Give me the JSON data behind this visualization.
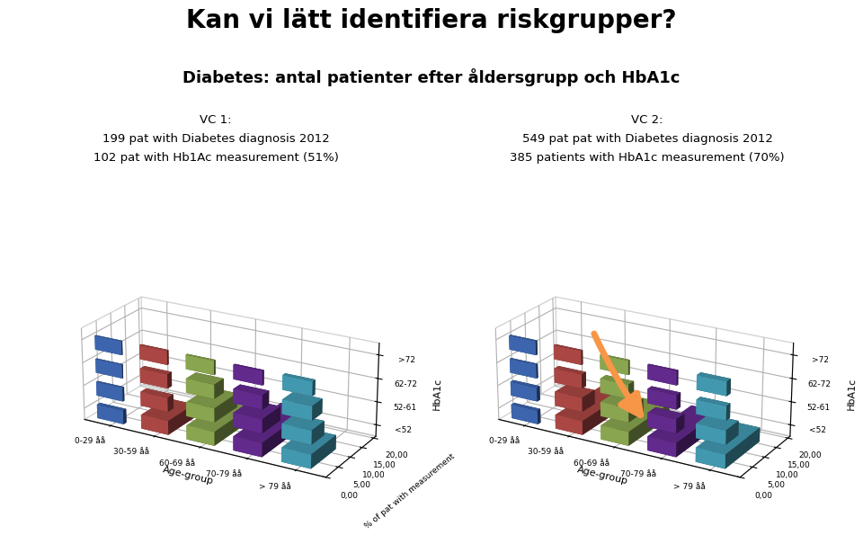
{
  "title_main": "Kan vi lätt identifiera riskgrupper?",
  "title_sub": "Diabetes: antal patienter efter åldersgrupp och HbA1c",
  "vc1_line1": "VC 1:",
  "vc1_line2": "199 pat with Diabetes diagnosis 2012",
  "vc1_line3": "102 pat with Hb1Ac measurement (51%)",
  "vc2_line1": "VC 2:",
  "vc2_line2": "549 pat pat with Diabetes diagnosis 2012",
  "vc2_line3": "385 patients with HbA1c measurement (70%)",
  "ylabel": "% of pat with measurement",
  "xlabel_age": "Age-group",
  "xlabel_hba1c": "HbA1c",
  "age_labels": [
    "0-29 åå",
    "30-59 åå",
    "60-69 åå",
    "70-79 åå",
    "> 79 åå"
  ],
  "hba1c_labels": [
    "<52",
    "52-61",
    "62-72",
    ">72"
  ],
  "ytick_vals": [
    0.0,
    5.0,
    10.0,
    15.0,
    20.0
  ],
  "ytick_labels": [
    "0,00",
    "5,00",
    "10,00",
    "15,00",
    "20,00"
  ],
  "bar_colors_age": [
    "#4472C4",
    "#C0504D",
    "#9BBB59",
    "#7030A0",
    "#4BACC6"
  ],
  "vc1_data": [
    [
      1.0,
      0.5,
      0.3,
      0.3
    ],
    [
      9.5,
      2.0,
      1.5,
      0.5
    ],
    [
      13.5,
      8.5,
      3.5,
      0.5
    ],
    [
      18.5,
      7.0,
      2.5,
      0.5
    ],
    [
      10.0,
      5.0,
      4.0,
      1.0
    ]
  ],
  "vc2_data": [
    [
      1.0,
      1.0,
      0.5,
      0.5
    ],
    [
      17.0,
      4.5,
      1.5,
      0.5
    ],
    [
      15.5,
      5.5,
      2.0,
      0.5
    ],
    [
      17.0,
      3.0,
      1.5,
      0.5
    ],
    [
      14.0,
      5.0,
      1.5,
      1.5
    ]
  ],
  "bg_color": "#FFFFFF",
  "arrow_color": "#F79646",
  "ymax": 21.0,
  "elev": 22,
  "azim": -60,
  "bar_width": 0.6,
  "bar_depth": 0.6
}
